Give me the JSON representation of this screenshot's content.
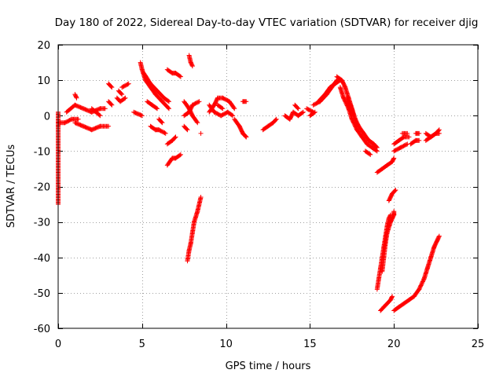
{
  "chart_data": {
    "type": "scatter",
    "title": "Day 180 of 2022, Sidereal Day-to-day VTEC variation (SDTVAR) for receiver djig",
    "xlabel": "GPS time / hours",
    "ylabel": "SDTVAR / TECUs",
    "xlim": [
      0,
      25
    ],
    "ylim": [
      -60,
      20
    ],
    "xticks": [
      0,
      5,
      10,
      15,
      20,
      25
    ],
    "yticks": [
      -60,
      -50,
      -40,
      -30,
      -20,
      -10,
      0,
      10,
      20
    ],
    "grid": true,
    "marker": "plus",
    "color": "#ff0000",
    "segments": [
      [
        [
          0.0,
          -2
        ],
        [
          0.4,
          -2
        ],
        [
          0.8,
          -1
        ],
        [
          1.2,
          -1
        ]
      ],
      [
        [
          0.0,
          1
        ],
        [
          0.0,
          -3
        ],
        [
          0.0,
          -25
        ]
      ],
      [
        [
          0.5,
          1
        ],
        [
          1.0,
          3
        ],
        [
          1.5,
          2
        ],
        [
          2.0,
          1
        ],
        [
          2.5,
          2
        ],
        [
          2.8,
          2
        ]
      ],
      [
        [
          1.0,
          -2
        ],
        [
          1.5,
          -3
        ],
        [
          2.0,
          -4
        ],
        [
          2.5,
          -3
        ],
        [
          3.0,
          -3
        ]
      ],
      [
        [
          1.0,
          6
        ],
        [
          1.1,
          5
        ]
      ],
      [
        [
          2.0,
          2
        ],
        [
          2.5,
          0
        ]
      ],
      [
        [
          3.0,
          9
        ],
        [
          3.2,
          8
        ]
      ],
      [
        [
          3.0,
          4
        ],
        [
          3.2,
          3
        ]
      ],
      [
        [
          3.5,
          5
        ],
        [
          3.7,
          4
        ],
        [
          4.0,
          5
        ]
      ],
      [
        [
          3.6,
          7
        ],
        [
          3.8,
          6
        ]
      ],
      [
        [
          3.8,
          8
        ],
        [
          4.2,
          9
        ]
      ],
      [
        [
          4.5,
          1
        ],
        [
          5.0,
          0
        ]
      ],
      [
        [
          4.9,
          15
        ],
        [
          5.0,
          13
        ],
        [
          5.2,
          10
        ],
        [
          5.5,
          8
        ],
        [
          5.8,
          6
        ],
        [
          6.2,
          4
        ],
        [
          6.6,
          2
        ]
      ],
      [
        [
          5.1,
          12
        ],
        [
          5.5,
          9
        ],
        [
          5.9,
          7
        ],
        [
          6.3,
          5
        ],
        [
          6.6,
          4
        ]
      ],
      [
        [
          5.3,
          4
        ],
        [
          5.6,
          3
        ],
        [
          5.9,
          2
        ]
      ],
      [
        [
          5.5,
          -3
        ],
        [
          5.8,
          -4
        ],
        [
          6.0,
          -4
        ],
        [
          6.4,
          -5
        ]
      ],
      [
        [
          6.0,
          -1
        ],
        [
          6.2,
          -2
        ]
      ],
      [
        [
          6.5,
          13
        ],
        [
          6.8,
          12
        ],
        [
          7.0,
          12
        ],
        [
          7.3,
          11
        ]
      ],
      [
        [
          6.5,
          -8
        ],
        [
          6.8,
          -7
        ],
        [
          7.0,
          -6
        ]
      ],
      [
        [
          6.5,
          -14
        ],
        [
          6.8,
          -12
        ],
        [
          7.0,
          -12
        ],
        [
          7.3,
          -11
        ]
      ],
      [
        [
          7.5,
          4
        ],
        [
          7.8,
          2
        ],
        [
          8.0,
          0
        ],
        [
          8.3,
          -2
        ]
      ],
      [
        [
          7.5,
          0
        ],
        [
          7.8,
          1
        ],
        [
          8.0,
          3
        ],
        [
          8.4,
          4
        ]
      ],
      [
        [
          7.8,
          17
        ],
        [
          7.9,
          15
        ],
        [
          8.0,
          14
        ]
      ],
      [
        [
          7.7,
          -41
        ],
        [
          7.8,
          -38
        ],
        [
          7.9,
          -36
        ],
        [
          8.0,
          -33
        ],
        [
          8.1,
          -30
        ],
        [
          8.3,
          -27
        ],
        [
          8.5,
          -23
        ]
      ],
      [
        [
          7.5,
          -3
        ],
        [
          7.7,
          -4
        ]
      ],
      [
        [
          8.5,
          -5
        ]
      ],
      [
        [
          9.0,
          1
        ],
        [
          9.3,
          3
        ],
        [
          9.5,
          5
        ],
        [
          9.8,
          5
        ],
        [
          10.2,
          4
        ],
        [
          10.5,
          2
        ]
      ],
      [
        [
          9.0,
          3
        ],
        [
          9.3,
          1
        ],
        [
          9.7,
          0
        ],
        [
          10.1,
          1
        ],
        [
          10.4,
          0
        ]
      ],
      [
        [
          9.5,
          3
        ],
        [
          9.8,
          2
        ]
      ],
      [
        [
          10.5,
          -1
        ],
        [
          10.8,
          -3
        ],
        [
          11.0,
          -5
        ],
        [
          11.2,
          -6
        ]
      ],
      [
        [
          11.0,
          4
        ],
        [
          11.2,
          4
        ]
      ],
      [
        [
          11.0,
          -5
        ],
        [
          11.2,
          -6
        ]
      ],
      [
        [
          12.2,
          -4
        ],
        [
          12.5,
          -3
        ],
        [
          12.8,
          -2
        ],
        [
          13.0,
          -1
        ]
      ],
      [
        [
          13.5,
          0
        ],
        [
          13.8,
          -1
        ],
        [
          14.0,
          1
        ],
        [
          14.3,
          0
        ],
        [
          14.6,
          1
        ]
      ],
      [
        [
          14.1,
          3
        ],
        [
          14.3,
          2
        ]
      ],
      [
        [
          14.8,
          2
        ],
        [
          15.2,
          1
        ]
      ],
      [
        [
          15.0,
          0
        ],
        [
          15.3,
          1
        ]
      ],
      [
        [
          15.2,
          3
        ],
        [
          15.6,
          4
        ],
        [
          16.0,
          6
        ],
        [
          16.3,
          8
        ],
        [
          16.6,
          10
        ],
        [
          16.9,
          10
        ]
      ],
      [
        [
          15.5,
          4
        ],
        [
          15.9,
          6
        ],
        [
          16.2,
          8
        ],
        [
          16.5,
          9
        ],
        [
          16.8,
          10
        ]
      ],
      [
        [
          16.6,
          11
        ],
        [
          16.9,
          10
        ],
        [
          17.1,
          8
        ],
        [
          17.3,
          5
        ],
        [
          17.5,
          2
        ],
        [
          17.7,
          -1
        ],
        [
          17.9,
          -3
        ],
        [
          18.2,
          -5
        ],
        [
          18.5,
          -7
        ],
        [
          18.8,
          -8
        ]
      ],
      [
        [
          16.8,
          8
        ],
        [
          17.0,
          5
        ],
        [
          17.3,
          2
        ],
        [
          17.5,
          -1
        ],
        [
          17.8,
          -4
        ],
        [
          18.1,
          -6
        ],
        [
          18.4,
          -8
        ],
        [
          18.7,
          -9
        ],
        [
          19.0,
          -10
        ]
      ],
      [
        [
          17.2,
          5
        ],
        [
          17.4,
          3
        ],
        [
          17.6,
          0
        ]
      ],
      [
        [
          18.5,
          -7
        ],
        [
          18.8,
          -8
        ],
        [
          19.0,
          -9
        ]
      ],
      [
        [
          18.3,
          -10
        ],
        [
          18.6,
          -11
        ]
      ],
      [
        [
          19.0,
          -16
        ],
        [
          19.3,
          -15
        ],
        [
          19.6,
          -14
        ],
        [
          19.9,
          -13
        ],
        [
          20.0,
          -12
        ]
      ],
      [
        [
          19.7,
          -24
        ],
        [
          19.9,
          -22
        ],
        [
          20.1,
          -21
        ]
      ],
      [
        [
          19.0,
          -49
        ],
        [
          19.1,
          -46
        ],
        [
          19.2,
          -43
        ],
        [
          19.3,
          -40
        ],
        [
          19.4,
          -37
        ],
        [
          19.5,
          -34
        ],
        [
          19.6,
          -31
        ],
        [
          19.7,
          -29
        ],
        [
          19.8,
          -28
        ]
      ],
      [
        [
          19.3,
          -44
        ],
        [
          19.4,
          -40
        ],
        [
          19.5,
          -36
        ],
        [
          19.6,
          -33
        ],
        [
          19.8,
          -30
        ],
        [
          19.9,
          -29
        ],
        [
          20.0,
          -28
        ],
        [
          20.0,
          -27
        ]
      ],
      [
        [
          19.2,
          -55
        ],
        [
          19.4,
          -54
        ],
        [
          19.6,
          -53
        ],
        [
          19.8,
          -52
        ],
        [
          19.9,
          -51
        ]
      ],
      [
        [
          20.0,
          -55
        ],
        [
          20.3,
          -54
        ],
        [
          20.6,
          -53
        ],
        [
          20.9,
          -52
        ],
        [
          21.2,
          -51
        ],
        [
          21.5,
          -49
        ],
        [
          21.8,
          -46
        ],
        [
          22.0,
          -43
        ],
        [
          22.2,
          -40
        ],
        [
          22.4,
          -37
        ],
        [
          22.6,
          -35
        ],
        [
          22.7,
          -34
        ]
      ],
      [
        [
          20.0,
          -8
        ],
        [
          20.3,
          -7
        ],
        [
          20.6,
          -6
        ],
        [
          20.9,
          -6
        ]
      ],
      [
        [
          20.0,
          -10
        ],
        [
          20.4,
          -9
        ],
        [
          20.8,
          -8
        ]
      ],
      [
        [
          20.5,
          -5
        ],
        [
          20.8,
          -5
        ]
      ],
      [
        [
          21.0,
          -8
        ],
        [
          21.3,
          -7
        ],
        [
          21.5,
          -7
        ]
      ],
      [
        [
          21.3,
          -5
        ],
        [
          21.5,
          -5
        ]
      ],
      [
        [
          21.9,
          -5
        ],
        [
          22.2,
          -6
        ],
        [
          22.5,
          -5
        ],
        [
          22.7,
          -4
        ]
      ],
      [
        [
          21.9,
          -7
        ],
        [
          22.2,
          -6
        ],
        [
          22.5,
          -5
        ],
        [
          22.7,
          -5
        ]
      ]
    ]
  }
}
